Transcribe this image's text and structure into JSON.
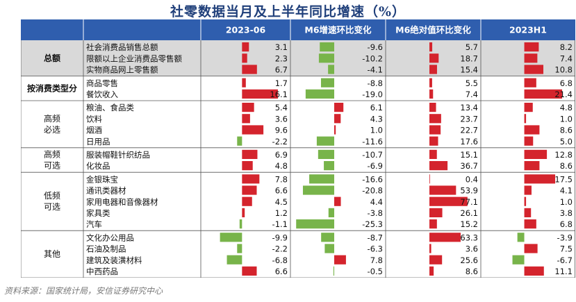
{
  "title": "社零数据当月及上半年同比增速（%）",
  "source": "资料来源：国家统计局，安信证券研究中心",
  "colors": {
    "header_bg": "#2f5eae",
    "positive": "#d4242d",
    "negative": "#78b44a",
    "total_bg": "#d9d9d9",
    "separator": "#555555"
  },
  "chart_data": {
    "type": "table",
    "title": "社零数据当月及上半年同比增速（%）",
    "columns": [
      "2023-06",
      "M6增速环比变化",
      "M6绝对值环比变化",
      "2023H1"
    ],
    "groups": [
      {
        "label": "总额",
        "bold": true,
        "shaded": true,
        "rows": [
          {
            "name": "社会消费品销售总额",
            "values": [
              3.1,
              -9.6,
              5.7,
              8.2
            ]
          },
          {
            "name": "限额以上企业消费品零售额",
            "values": [
              2.3,
              -10.2,
              18.7,
              7.4
            ]
          },
          {
            "name": "实物商品网上零售额",
            "values": [
              6.7,
              -4.1,
              15.4,
              10.8
            ]
          }
        ]
      },
      {
        "label": "按消费类型分",
        "bold": true,
        "shaded": false,
        "rows": [
          {
            "name": "商品零售",
            "values": [
              1.7,
              -8.8,
              5.5,
              6.8
            ]
          },
          {
            "name": "餐饮收入",
            "values": [
              16.1,
              -19.0,
              7.4,
              21.4
            ]
          }
        ]
      },
      {
        "label": "高频\n必选",
        "bold": false,
        "shaded": false,
        "rows": [
          {
            "name": "粮油、食品类",
            "values": [
              5.4,
              6.1,
              13.4,
              4.8
            ]
          },
          {
            "name": "饮料",
            "values": [
              3.6,
              4.3,
              23.7,
              1.0
            ]
          },
          {
            "name": "烟酒",
            "values": [
              9.6,
              1.0,
              22.7,
              8.6
            ]
          },
          {
            "name": "日用品",
            "values": [
              -2.2,
              -11.6,
              17.6,
              5.0
            ]
          }
        ]
      },
      {
        "label": "高频\n可选",
        "bold": false,
        "shaded": false,
        "rows": [
          {
            "name": "服装帽鞋针织纺品",
            "values": [
              6.9,
              -10.7,
              15.1,
              12.8
            ]
          },
          {
            "name": "化妆品",
            "values": [
              4.8,
              -6.9,
              36.7,
              8.6
            ]
          }
        ]
      },
      {
        "label": "低频\n可选",
        "bold": false,
        "shaded": false,
        "rows": [
          {
            "name": "金银珠宝",
            "values": [
              7.8,
              -16.6,
              0.4,
              17.5
            ]
          },
          {
            "name": "通讯类器材",
            "values": [
              6.6,
              -20.8,
              53.9,
              4.1
            ]
          },
          {
            "name": "家用电器和音像器材",
            "values": [
              4.5,
              4.4,
              77.1,
              1.0
            ]
          },
          {
            "name": "家具类",
            "values": [
              1.2,
              -3.8,
              26.1,
              3.8
            ]
          },
          {
            "name": "汽车",
            "values": [
              -1.1,
              -25.3,
              15.2,
              6.8
            ]
          }
        ]
      },
      {
        "label": "其他",
        "bold": false,
        "shaded": false,
        "rows": [
          {
            "name": "文化办公用品",
            "values": [
              -9.9,
              -8.7,
              63.3,
              -3.9
            ]
          },
          {
            "name": "石油及制品",
            "values": [
              -2.2,
              -6.3,
              3.6,
              7.5
            ]
          },
          {
            "name": "建筑及装潢材料",
            "values": [
              -6.8,
              7.8,
              25.6,
              -6.7
            ]
          },
          {
            "name": "中西药品",
            "values": [
              6.6,
              -0.5,
              8.6,
              11.1
            ]
          }
        ]
      }
    ]
  }
}
